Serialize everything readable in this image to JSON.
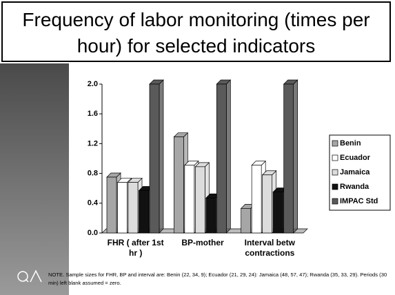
{
  "chart_data": {
    "type": "bar",
    "title": "Frequency of labor monitoring (times per hour) for selected indicators",
    "categories": [
      "FHR  ( after 1st hr )",
      "BP-mother",
      "Interval betw contractions"
    ],
    "series": [
      {
        "name": "Benin",
        "color": "#a6a6a6",
        "values": [
          0.75,
          1.29,
          0.33
        ]
      },
      {
        "name": "Ecuador",
        "color": "#ffffff",
        "values": [
          0.68,
          0.91,
          0.91
        ]
      },
      {
        "name": "Jamaica",
        "color": "#dcdcdc",
        "values": [
          0.68,
          0.89,
          0.78
        ]
      },
      {
        "name": "Rwanda",
        "color": "#111111",
        "values": [
          0.57,
          0.47,
          0.55
        ]
      },
      {
        "name": "IMPAC Std",
        "color": "#5a5a5a",
        "values": [
          2.0,
          2.0,
          2.0
        ]
      }
    ],
    "ylim": [
      0,
      2
    ],
    "yticks": [
      {
        "value": 0,
        "label": "0.0"
      },
      0.4,
      0.8,
      1.2,
      1.6,
      {
        "value": 2,
        "label": "2.0"
      }
    ],
    "legend": "right",
    "note": "NOTE. Sample sizes for FHR, BP and interval are: Benin (22, 34, 9); Ecuador (21, 29, 24): Jamaica (48, 57, 47); Rwanda (35, 33, 29).  Periods (30 min) left blank assumed = zero."
  }
}
